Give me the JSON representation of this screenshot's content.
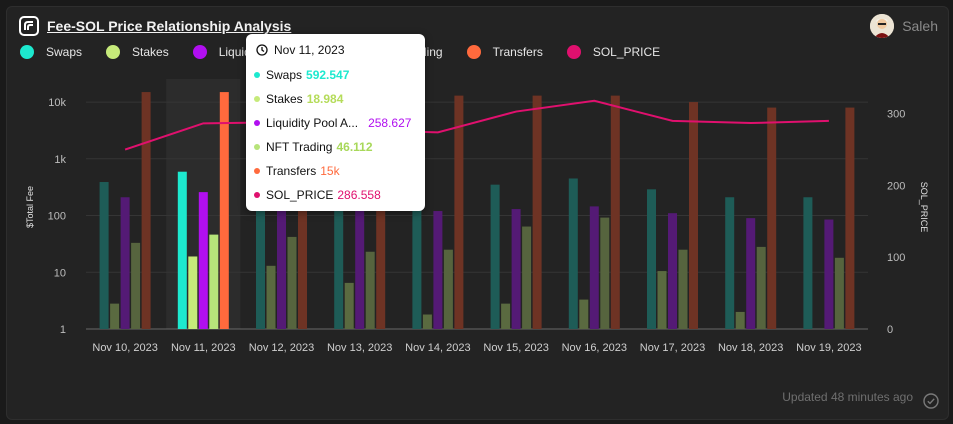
{
  "header": {
    "title": "Fee-SOL Price Relationship Analysis",
    "username": "Saleh"
  },
  "footer": {
    "updated": "Updated 48 minutes ago"
  },
  "colors": {
    "swaps": "#1de9cf",
    "stakes": "#c6ea7a",
    "lp": "#b10ff0",
    "nft": "#b7e47a",
    "transfers": "#ff6a3d",
    "sol": "#e0106e"
  },
  "legend": [
    {
      "key": "swaps",
      "label": "Swaps"
    },
    {
      "key": "stakes",
      "label": "Stakes"
    },
    {
      "key": "lp",
      "label": "Liquidity Pool Actions"
    },
    {
      "key": "nft",
      "label": "NFT Trading"
    },
    {
      "key": "transfers",
      "label": "Transfers"
    },
    {
      "key": "sol",
      "label": "SOL_PRICE"
    }
  ],
  "tooltip": {
    "date": "Nov 11, 2023",
    "rows": [
      {
        "key": "swaps",
        "label": "Swaps",
        "value": "592.547"
      },
      {
        "key": "stakes",
        "label": "Stakes",
        "value": "18.984"
      },
      {
        "key": "lp",
        "label": "Liquidity Pool A...",
        "value": "258.627"
      },
      {
        "key": "nft",
        "label": "NFT Trading",
        "value": "46.112"
      },
      {
        "key": "transfers",
        "label": "Transfers",
        "value": "15k"
      },
      {
        "key": "sol",
        "label": "SOL_PRICE",
        "value": "286.558"
      }
    ]
  },
  "chart_data": {
    "type": "bar",
    "categories": [
      "Nov 10, 2023",
      "Nov 11, 2023",
      "Nov 12, 2023",
      "Nov 13, 2023",
      "Nov 14, 2023",
      "Nov 15, 2023",
      "Nov 16, 2023",
      "Nov 17, 2023",
      "Nov 18, 2023",
      "Nov 19, 2023"
    ],
    "highlight_index": 1,
    "ylabel": "$Total Fee",
    "y2label": "SOL_PRICE",
    "y_scale": "log",
    "ylim": [
      1,
      20000
    ],
    "y_ticks": [
      {
        "v": 1,
        "label": "1"
      },
      {
        "v": 10,
        "label": "10"
      },
      {
        "v": 100,
        "label": "100"
      },
      {
        "v": 1000,
        "label": "1k"
      },
      {
        "v": 10000,
        "label": "10k"
      }
    ],
    "y2lim": [
      0,
      340
    ],
    "y2_ticks": [
      0,
      100,
      200,
      300
    ],
    "series": [
      {
        "key": "swaps",
        "name": "Swaps",
        "values": [
          390,
          592.547,
          330,
          300,
          290,
          350,
          450,
          290,
          210,
          210
        ]
      },
      {
        "key": "stakes",
        "name": "Stakes",
        "values": [
          2.8,
          18.984,
          13,
          6.5,
          1.8,
          2.8,
          3.3,
          10.5,
          2,
          0
        ]
      },
      {
        "key": "lp",
        "name": "Liquidity Pool Actions",
        "values": [
          210,
          258.627,
          220,
          180,
          120,
          130,
          145,
          110,
          90,
          85
        ]
      },
      {
        "key": "nft",
        "name": "NFT Trading",
        "values": [
          33,
          46.112,
          42,
          23,
          25,
          64,
          92,
          25,
          28,
          18
        ]
      },
      {
        "key": "transfers",
        "name": "Transfers",
        "values": [
          15000,
          15000,
          13000,
          13000,
          13000,
          13000,
          13000,
          10000,
          8000,
          8000
        ]
      },
      {
        "key": "sol",
        "name": "SOL_PRICE",
        "type": "line",
        "values": [
          250,
          286.558,
          288,
          277,
          274,
          303,
          318,
          290,
          287,
          290
        ]
      }
    ]
  }
}
